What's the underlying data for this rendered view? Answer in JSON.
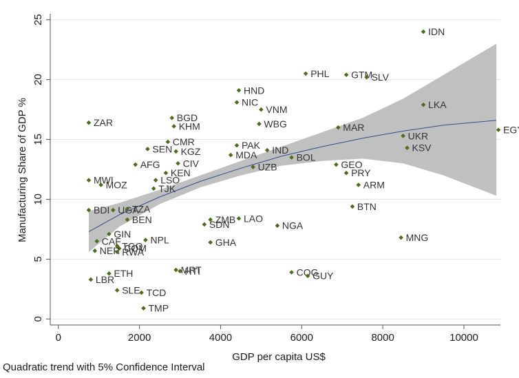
{
  "chart_data": {
    "type": "scatter",
    "title": "",
    "xlabel": "GDP per capita US$",
    "ylabel": "Manufacturing Share of GDP %",
    "xlim": [
      -200,
      10900
    ],
    "ylim": [
      -0.5,
      25.5
    ],
    "xticks": [
      0,
      2000,
      4000,
      6000,
      8000,
      10000
    ],
    "yticks": [
      0,
      5,
      10,
      15,
      20,
      25
    ],
    "grid": "horizontal",
    "legend": "none",
    "colors": {
      "points": "#4f6b1c",
      "band": "#c0c0c0",
      "trend": "#2e4d8a",
      "labels": "#333333"
    },
    "trend": {
      "x": [
        750,
        1500,
        2500,
        3500,
        4500,
        5500,
        6500,
        7500,
        8500,
        9500,
        10800
      ],
      "fit": [
        7.3,
        8.7,
        10.2,
        11.5,
        12.6,
        13.6,
        14.4,
        15.1,
        15.7,
        16.2,
        16.6
      ],
      "lower": [
        5.6,
        7.7,
        9.6,
        11.0,
        12.0,
        12.8,
        13.2,
        13.4,
        13.0,
        12.0,
        10.3
      ],
      "upper": [
        9.0,
        9.7,
        10.8,
        12.0,
        13.2,
        14.4,
        15.6,
        16.8,
        18.4,
        20.4,
        23.0
      ]
    },
    "points": [
      {
        "label": "IDN",
        "x": 9000,
        "y": 24.0
      },
      {
        "label": "PHL",
        "x": 6100,
        "y": 20.5
      },
      {
        "label": "GTM",
        "x": 7100,
        "y": 20.4
      },
      {
        "label": "SLV",
        "x": 7600,
        "y": 20.2
      },
      {
        "label": "HND",
        "x": 4450,
        "y": 19.1
      },
      {
        "label": "NIC",
        "x": 4400,
        "y": 18.1
      },
      {
        "label": "VNM",
        "x": 5000,
        "y": 17.5
      },
      {
        "label": "LKA",
        "x": 9000,
        "y": 17.9
      },
      {
        "label": "BGD",
        "x": 2800,
        "y": 16.8
      },
      {
        "label": "ZAR",
        "x": 750,
        "y": 16.4
      },
      {
        "label": "KHM",
        "x": 2850,
        "y": 16.1
      },
      {
        "label": "WBG",
        "x": 4950,
        "y": 16.3
      },
      {
        "label": "MAR",
        "x": 6900,
        "y": 16.0
      },
      {
        "label": "EGY",
        "x": 10850,
        "y": 15.8
      },
      {
        "label": "UKR",
        "x": 8500,
        "y": 15.3
      },
      {
        "label": "CMR",
        "x": 2700,
        "y": 14.8
      },
      {
        "label": "PAK",
        "x": 4400,
        "y": 14.5
      },
      {
        "label": "KSV",
        "x": 8600,
        "y": 14.3
      },
      {
        "label": "SEN",
        "x": 2200,
        "y": 14.2
      },
      {
        "label": "KGZ",
        "x": 2900,
        "y": 14.0
      },
      {
        "label": "IND",
        "x": 5150,
        "y": 14.1
      },
      {
        "label": "MDA",
        "x": 4250,
        "y": 13.7
      },
      {
        "label": "BOL",
        "x": 5750,
        "y": 13.5
      },
      {
        "label": "CIV",
        "x": 2950,
        "y": 13.0
      },
      {
        "label": "AFG",
        "x": 1900,
        "y": 12.9
      },
      {
        "label": "GEO",
        "x": 6850,
        "y": 12.9
      },
      {
        "label": "UZB",
        "x": 4800,
        "y": 12.7
      },
      {
        "label": "KEN",
        "x": 2650,
        "y": 12.2
      },
      {
        "label": "PRY",
        "x": 7100,
        "y": 12.2
      },
      {
        "label": "MWI",
        "x": 750,
        "y": 11.6
      },
      {
        "label": "LSO",
        "x": 2400,
        "y": 11.6
      },
      {
        "label": "MOZ",
        "x": 1050,
        "y": 11.2
      },
      {
        "label": "ARM",
        "x": 7400,
        "y": 11.2
      },
      {
        "label": "TJK",
        "x": 2350,
        "y": 10.9
      },
      {
        "label": "BTN",
        "x": 7250,
        "y": 9.4
      },
      {
        "label": "BDI",
        "x": 750,
        "y": 9.1
      },
      {
        "label": "UGA",
        "x": 1350,
        "y": 9.1
      },
      {
        "label": "TZA",
        "x": 1700,
        "y": 9.2
      },
      {
        "label": "BEN",
        "x": 1700,
        "y": 8.3
      },
      {
        "label": "ZMB",
        "x": 3750,
        "y": 8.3
      },
      {
        "label": "LAO",
        "x": 4450,
        "y": 8.4
      },
      {
        "label": "SDN",
        "x": 3600,
        "y": 7.9
      },
      {
        "label": "NGA",
        "x": 5400,
        "y": 7.8
      },
      {
        "label": "GIN",
        "x": 1250,
        "y": 7.1
      },
      {
        "label": "MNG",
        "x": 8450,
        "y": 6.8
      },
      {
        "label": "NPL",
        "x": 2150,
        "y": 6.6
      },
      {
        "label": "CAF",
        "x": 950,
        "y": 6.5
      },
      {
        "label": "GHA",
        "x": 3750,
        "y": 6.4
      },
      {
        "label": "TGO",
        "x": 1450,
        "y": 6.1
      },
      {
        "label": "COM",
        "x": 1500,
        "y": 5.9
      },
      {
        "label": "NER",
        "x": 900,
        "y": 5.7
      },
      {
        "label": "RWA",
        "x": 1450,
        "y": 5.6
      },
      {
        "label": "MRT",
        "x": 2900,
        "y": 4.1
      },
      {
        "label": "HTI",
        "x": 3000,
        "y": 4.0
      },
      {
        "label": "COG",
        "x": 5750,
        "y": 3.9
      },
      {
        "label": "ETH",
        "x": 1250,
        "y": 3.8
      },
      {
        "label": "GUY",
        "x": 6150,
        "y": 3.6
      },
      {
        "label": "LBR",
        "x": 800,
        "y": 3.3
      },
      {
        "label": "SLE",
        "x": 1450,
        "y": 2.4
      },
      {
        "label": "TCD",
        "x": 2050,
        "y": 2.2
      },
      {
        "label": "TMP",
        "x": 2100,
        "y": 0.9
      }
    ]
  },
  "note": "Quadratic trend with 5% Confidence Interval"
}
